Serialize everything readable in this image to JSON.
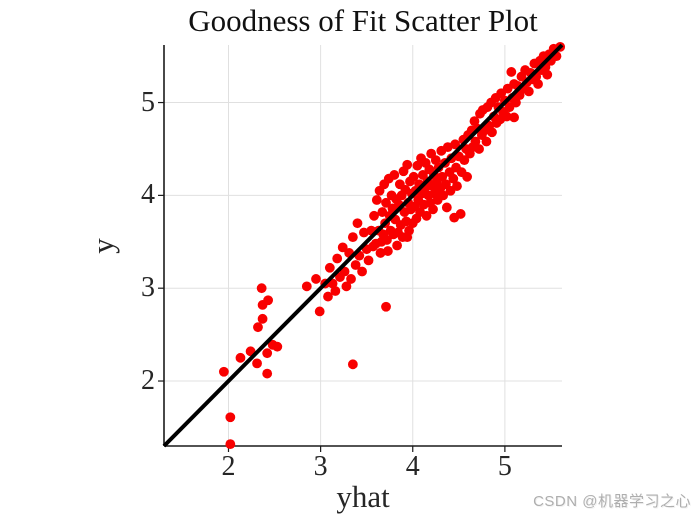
{
  "figure": {
    "title": "Goodness of Fit Scatter Plot",
    "watermark": "CSDN @机器学习之心"
  },
  "chart_data": {
    "type": "scatter",
    "title": "Goodness of Fit Scatter Plot",
    "xlabel": "yhat",
    "ylabel": "y",
    "xlim": [
      1.3,
      5.62
    ],
    "ylim": [
      1.3,
      5.62
    ],
    "xticks": [
      2,
      3,
      4,
      5
    ],
    "yticks": [
      2,
      3,
      4,
      5
    ],
    "grid": true,
    "legend": "none",
    "identity_line": {
      "from": [
        1.3,
        1.3
      ],
      "to": [
        5.62,
        5.62
      ],
      "color": "#000000",
      "width": 4
    },
    "marker": {
      "shape": "filled-circle",
      "color": "#f80000",
      "radius": 4.9
    },
    "colors": {
      "grid": "#e0e0e0",
      "axis": "#1a1a1a",
      "text": "#262626",
      "background": "#ffffff",
      "watermark": "#aeaeae"
    },
    "points": [
      [
        2.02,
        1.32
      ],
      [
        2.02,
        1.61
      ],
      [
        1.95,
        2.1
      ],
      [
        2.13,
        2.25
      ],
      [
        2.24,
        2.32
      ],
      [
        2.31,
        2.19
      ],
      [
        2.42,
        2.3
      ],
      [
        2.48,
        2.39
      ],
      [
        2.53,
        2.37
      ],
      [
        2.42,
        2.08
      ],
      [
        2.32,
        2.58
      ],
      [
        2.37,
        2.67
      ],
      [
        2.37,
        2.82
      ],
      [
        2.43,
        2.87
      ],
      [
        2.36,
        3.0
      ],
      [
        2.85,
        3.02
      ],
      [
        2.95,
        3.1
      ],
      [
        2.99,
        2.75
      ],
      [
        3.08,
        2.91
      ],
      [
        3.05,
        3.05
      ],
      [
        3.35,
        2.18
      ],
      [
        3.71,
        2.8
      ],
      [
        3.1,
        3.22
      ],
      [
        3.13,
        3.05
      ],
      [
        3.16,
        2.97
      ],
      [
        3.18,
        3.32
      ],
      [
        3.21,
        3.12
      ],
      [
        3.24,
        3.44
      ],
      [
        3.26,
        3.18
      ],
      [
        3.28,
        3.02
      ],
      [
        3.31,
        3.38
      ],
      [
        3.33,
        3.1
      ],
      [
        3.35,
        3.55
      ],
      [
        3.38,
        3.25
      ],
      [
        3.4,
        3.7
      ],
      [
        3.42,
        3.35
      ],
      [
        3.45,
        3.18
      ],
      [
        3.47,
        3.6
      ],
      [
        3.5,
        3.42
      ],
      [
        3.52,
        3.3
      ],
      [
        3.55,
        3.62
      ],
      [
        3.57,
        3.45
      ],
      [
        3.58,
        3.78
      ],
      [
        3.6,
        3.48
      ],
      [
        3.61,
        3.95
      ],
      [
        3.63,
        3.62
      ],
      [
        3.64,
        4.05
      ],
      [
        3.65,
        3.38
      ],
      [
        3.67,
        3.82
      ],
      [
        3.68,
        3.58
      ],
      [
        3.69,
        4.12
      ],
      [
        3.7,
        3.7
      ],
      [
        3.71,
        3.92
      ],
      [
        3.72,
        3.52
      ],
      [
        3.74,
        4.18
      ],
      [
        3.75,
        3.78
      ],
      [
        3.76,
        3.62
      ],
      [
        3.77,
        4.0
      ],
      [
        3.78,
        3.86
      ],
      [
        3.79,
        3.58
      ],
      [
        3.8,
        4.22
      ],
      [
        3.81,
        3.74
      ],
      [
        3.82,
        3.96
      ],
      [
        3.83,
        3.46
      ],
      [
        3.85,
        3.9
      ],
      [
        3.86,
        4.12
      ],
      [
        3.87,
        3.68
      ],
      [
        3.88,
        4.0
      ],
      [
        3.89,
        3.55
      ],
      [
        3.9,
        4.26
      ],
      [
        3.91,
        3.82
      ],
      [
        3.92,
        4.06
      ],
      [
        3.93,
        3.72
      ],
      [
        3.94,
        4.33
      ],
      [
        3.95,
        3.92
      ],
      [
        3.96,
        3.62
      ],
      [
        3.97,
        4.15
      ],
      [
        3.98,
        3.85
      ],
      [
        3.99,
        4.02
      ],
      [
        4.0,
        3.7
      ],
      [
        3.66,
        3.5
      ],
      [
        3.73,
        3.4
      ],
      [
        3.84,
        3.6
      ],
      [
        3.94,
        3.55
      ],
      [
        4.01,
        4.2
      ],
      [
        4.02,
        3.88
      ],
      [
        4.03,
        4.05
      ],
      [
        4.04,
        3.75
      ],
      [
        4.05,
        4.32
      ],
      [
        4.06,
        3.95
      ],
      [
        4.07,
        4.12
      ],
      [
        4.08,
        3.82
      ],
      [
        4.09,
        4.4
      ],
      [
        4.1,
        4.02
      ],
      [
        4.11,
        4.22
      ],
      [
        4.12,
        3.9
      ],
      [
        4.13,
        4.08
      ],
      [
        4.14,
        4.35
      ],
      [
        4.15,
        3.78
      ],
      [
        4.16,
        4.15
      ],
      [
        4.17,
        4.0
      ],
      [
        4.18,
        4.28
      ],
      [
        4.19,
        3.92
      ],
      [
        4.2,
        4.45
      ],
      [
        4.21,
        4.1
      ],
      [
        4.22,
        3.85
      ],
      [
        4.23,
        4.22
      ],
      [
        4.24,
        4.02
      ],
      [
        4.25,
        4.38
      ],
      [
        4.26,
        4.15
      ],
      [
        4.27,
        3.95
      ],
      [
        4.28,
        4.3
      ],
      [
        4.3,
        4.08
      ],
      [
        4.31,
        4.48
      ],
      [
        4.32,
        4.2
      ],
      [
        4.33,
        4.0
      ],
      [
        4.35,
        4.35
      ],
      [
        4.36,
        4.12
      ],
      [
        4.37,
        3.87
      ],
      [
        4.38,
        4.52
      ],
      [
        4.4,
        4.25
      ],
      [
        4.41,
        4.05
      ],
      [
        4.42,
        4.4
      ],
      [
        4.44,
        4.18
      ],
      [
        4.45,
        3.76
      ],
      [
        4.46,
        4.55
      ],
      [
        4.47,
        4.3
      ],
      [
        4.48,
        4.1
      ],
      [
        4.5,
        4.42
      ],
      [
        4.52,
        3.8
      ],
      [
        4.53,
        4.25
      ],
      [
        4.55,
        4.6
      ],
      [
        4.56,
        4.38
      ],
      [
        4.58,
        4.5
      ],
      [
        4.59,
        4.2
      ],
      [
        4.6,
        4.65
      ],
      [
        4.62,
        4.45
      ],
      [
        4.64,
        4.7
      ],
      [
        4.65,
        4.52
      ],
      [
        4.67,
        4.8
      ],
      [
        4.68,
        4.58
      ],
      [
        4.7,
        4.72
      ],
      [
        4.72,
        4.5
      ],
      [
        4.73,
        4.88
      ],
      [
        4.75,
        4.65
      ],
      [
        4.76,
        4.92
      ],
      [
        4.78,
        4.7
      ],
      [
        4.8,
        4.58
      ],
      [
        4.81,
        4.95
      ],
      [
        4.83,
        4.75
      ],
      [
        4.85,
        5.0
      ],
      [
        4.86,
        4.68
      ],
      [
        4.88,
        4.85
      ],
      [
        4.9,
        5.05
      ],
      [
        4.91,
        4.78
      ],
      [
        4.93,
        4.95
      ],
      [
        4.95,
        4.82
      ],
      [
        4.96,
        5.1
      ],
      [
        4.98,
        4.9
      ],
      [
        5.0,
        5.02
      ],
      [
        5.02,
        4.85
      ],
      [
        5.03,
        5.15
      ],
      [
        5.05,
        4.95
      ],
      [
        5.07,
        5.33
      ],
      [
        5.08,
        5.05
      ],
      [
        5.1,
        4.84
      ],
      [
        5.1,
        5.2
      ],
      [
        5.12,
        5.0
      ],
      [
        5.14,
        5.18
      ],
      [
        5.16,
        5.08
      ],
      [
        5.18,
        5.28
      ],
      [
        5.2,
        5.15
      ],
      [
        5.22,
        5.35
      ],
      [
        5.24,
        5.22
      ],
      [
        5.26,
        5.12
      ],
      [
        5.28,
        5.32
      ],
      [
        5.3,
        5.25
      ],
      [
        5.32,
        5.42
      ],
      [
        5.34,
        5.28
      ],
      [
        5.36,
        5.2
      ],
      [
        5.38,
        5.45
      ],
      [
        5.4,
        5.35
      ],
      [
        5.42,
        5.5
      ],
      [
        5.44,
        5.38
      ],
      [
        5.46,
        5.3
      ],
      [
        5.48,
        5.52
      ],
      [
        5.5,
        5.45
      ],
      [
        5.53,
        5.58
      ],
      [
        5.56,
        5.5
      ],
      [
        5.6,
        5.6
      ]
    ]
  }
}
